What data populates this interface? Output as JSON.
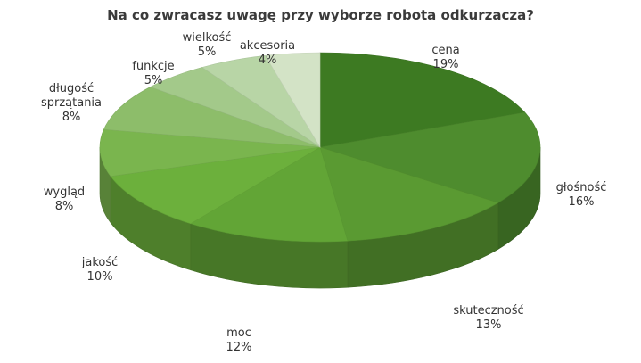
{
  "chart_data": {
    "type": "pie",
    "title": "Na co zwracasz uwagę przy wyborze robota odkurzacza?",
    "slices": [
      {
        "label": [
          "cena"
        ],
        "value": 19,
        "value_label": "19%",
        "color": "#3d7a22"
      },
      {
        "label": [
          "głośność"
        ],
        "value": 16,
        "value_label": "16%",
        "color": "#4e8c2e"
      },
      {
        "label": [
          "skuteczność"
        ],
        "value": 13,
        "value_label": "13%",
        "color": "#5a9a32"
      },
      {
        "label": [
          "moc"
        ],
        "value": 12,
        "value_label": "12%",
        "color": "#62a536"
      },
      {
        "label": [
          "jakość"
        ],
        "value": 10,
        "value_label": "10%",
        "color": "#6cb03c"
      },
      {
        "label": [
          "wygląd"
        ],
        "value": 8,
        "value_label": "8%",
        "color": "#7ab54e"
      },
      {
        "label": [
          "długość",
          "sprzątania"
        ],
        "value": 8,
        "value_label": "8%",
        "color": "#8dbd6a"
      },
      {
        "label": [
          "funkcje"
        ],
        "value": 5,
        "value_label": "5%",
        "color": "#a3c98a"
      },
      {
        "label": [
          "wielkość"
        ],
        "value": 5,
        "value_label": "5%",
        "color": "#b8d5a6"
      },
      {
        "label": [
          "akcesoria"
        ],
        "value": 4,
        "value_label": "4%",
        "color": "#d3e3c6"
      }
    ]
  }
}
